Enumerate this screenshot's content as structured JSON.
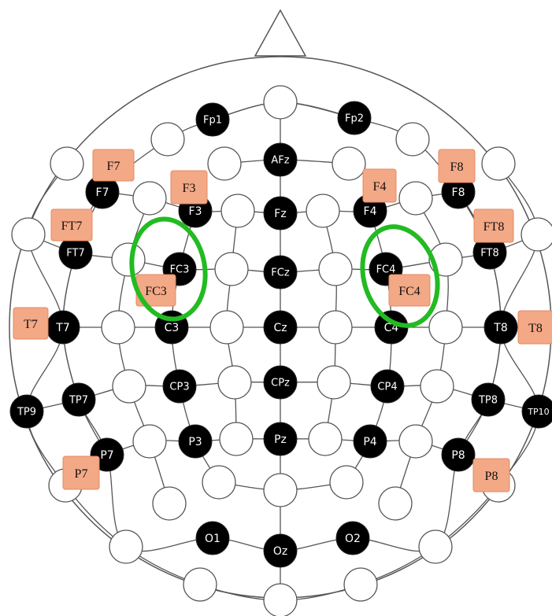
{
  "colors": {
    "line": "#555555",
    "filled": "#000000",
    "empty_fill": "#ffffff",
    "tag_fill": "#f3a886",
    "tag_stroke": "#e58a60",
    "highlight": "#22bb22"
  },
  "electrodes": [
    "Fp1",
    "Fp2",
    "AFz",
    "F7",
    "F3",
    "Fz",
    "F4",
    "F8",
    "FT7",
    "FC3",
    "FCz",
    "FC4",
    "FT8",
    "T7",
    "C3",
    "Cz",
    "C4",
    "T8",
    "TP9",
    "TP7",
    "CP3",
    "CPz",
    "CP4",
    "TP8",
    "TP10",
    "P7",
    "P3",
    "Pz",
    "P4",
    "P8",
    "O1",
    "Oz",
    "O2"
  ],
  "tags": [
    "F7",
    "F3",
    "F4",
    "F8",
    "FT7",
    "FT8",
    "FC3",
    "FC4",
    "T7",
    "T8",
    "P7",
    "P8"
  ],
  "highlighted": [
    "FC3",
    "FC4"
  ]
}
